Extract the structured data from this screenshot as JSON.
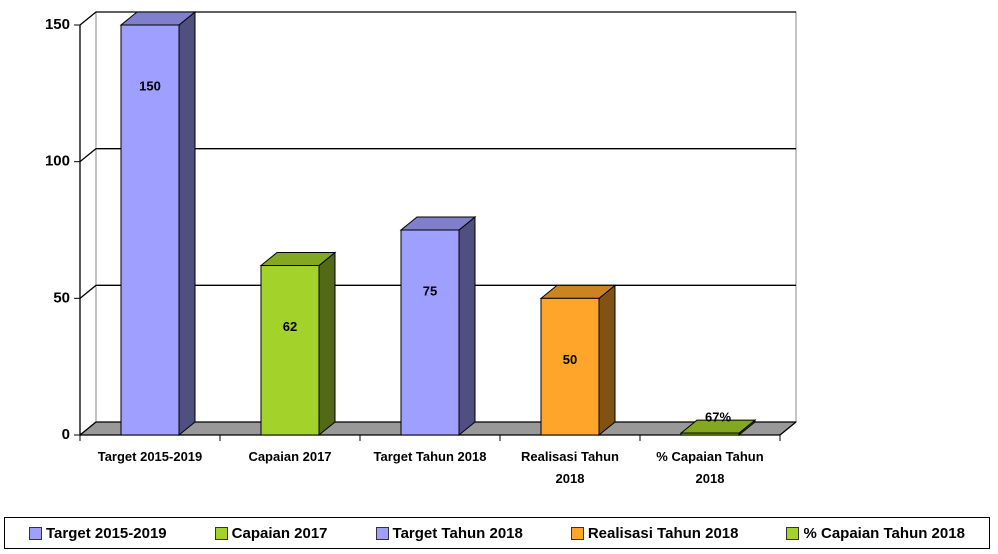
{
  "chart_data": {
    "type": "bar3d",
    "categories": [
      "Target 2015-2019",
      "Capaian 2017",
      "Target Tahun 2018",
      "Realisasi Tahun 2018",
      "% Capaian Tahun 2018"
    ],
    "values": [
      150,
      62,
      75,
      50,
      0.67
    ],
    "value_labels": [
      "150",
      "62",
      "75",
      "50",
      "67%"
    ],
    "colors": [
      "#9f9fff",
      "#a3d22a",
      "#9f9fff",
      "#ffa52a",
      "#a3d22a"
    ],
    "ylim": [
      0,
      150
    ],
    "yticks": [
      0,
      50,
      100,
      150
    ],
    "grid": true,
    "legend": "bottom"
  }
}
